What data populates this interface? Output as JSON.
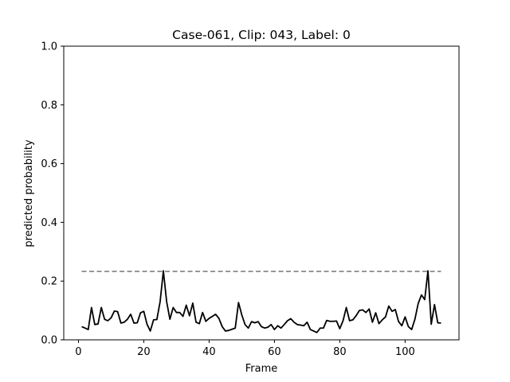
{
  "chart_data": {
    "type": "line",
    "title": "Case-061, Clip: 043, Label: 0",
    "xlabel": "Frame",
    "ylabel": "predicted probability",
    "xlim": [
      -4.5,
      116.5
    ],
    "ylim": [
      0,
      1
    ],
    "xticks": [
      "0",
      "20",
      "40",
      "60",
      "80",
      "100"
    ],
    "xtick_values": [
      0,
      20,
      40,
      60,
      80,
      100
    ],
    "yticks": [
      "0.0",
      "0.2",
      "0.4",
      "0.6",
      "0.8",
      "1.0"
    ],
    "ytick_values": [
      0,
      0.2,
      0.4,
      0.6,
      0.8,
      1.0
    ],
    "grid": false,
    "series": [
      {
        "color": "#000000",
        "style": "solid",
        "x": [
          1,
          2,
          3,
          4,
          5,
          6,
          7,
          8,
          9,
          10,
          11,
          12,
          13,
          14,
          15,
          16,
          17,
          18,
          19,
          20,
          21,
          22,
          23,
          24,
          25,
          26,
          27,
          28,
          29,
          30,
          31,
          32,
          33,
          34,
          35,
          36,
          37,
          38,
          39,
          40,
          41,
          42,
          43,
          44,
          45,
          46,
          47,
          48,
          49,
          50,
          51,
          52,
          53,
          54,
          55,
          56,
          57,
          58,
          59,
          60,
          61,
          62,
          63,
          64,
          65,
          66,
          67,
          68,
          69,
          70,
          71,
          72,
          73,
          74,
          75,
          76,
          77,
          78,
          79,
          80,
          81,
          82,
          83,
          84,
          85,
          86,
          87,
          88,
          89,
          90,
          91,
          92,
          93,
          94,
          95,
          96,
          97,
          98,
          99,
          100,
          101,
          102,
          103,
          104,
          105,
          106,
          107,
          108,
          109,
          110,
          111
        ],
        "y": [
          0.045,
          0.04,
          0.035,
          0.11,
          0.052,
          0.054,
          0.11,
          0.07,
          0.065,
          0.075,
          0.098,
          0.096,
          0.057,
          0.06,
          0.07,
          0.087,
          0.057,
          0.058,
          0.092,
          0.097,
          0.053,
          0.03,
          0.068,
          0.069,
          0.13,
          0.235,
          0.13,
          0.07,
          0.11,
          0.093,
          0.093,
          0.08,
          0.118,
          0.082,
          0.125,
          0.06,
          0.055,
          0.093,
          0.063,
          0.073,
          0.08,
          0.087,
          0.073,
          0.045,
          0.03,
          0.032,
          0.036,
          0.04,
          0.127,
          0.085,
          0.052,
          0.04,
          0.062,
          0.058,
          0.062,
          0.045,
          0.04,
          0.043,
          0.052,
          0.035,
          0.048,
          0.04,
          0.052,
          0.065,
          0.072,
          0.06,
          0.052,
          0.05,
          0.048,
          0.06,
          0.035,
          0.03,
          0.025,
          0.04,
          0.04,
          0.066,
          0.063,
          0.063,
          0.064,
          0.038,
          0.065,
          0.11,
          0.065,
          0.068,
          0.082,
          0.1,
          0.102,
          0.093,
          0.105,
          0.06,
          0.092,
          0.055,
          0.068,
          0.078,
          0.115,
          0.097,
          0.103,
          0.062,
          0.048,
          0.078,
          0.045,
          0.035,
          0.07,
          0.123,
          0.153,
          0.137,
          0.235,
          0.053,
          0.12,
          0.058,
          0.057
        ]
      },
      {
        "color": "#808080",
        "style": "dashed",
        "x": [
          1,
          111
        ],
        "y": [
          0.233,
          0.233
        ]
      }
    ]
  }
}
